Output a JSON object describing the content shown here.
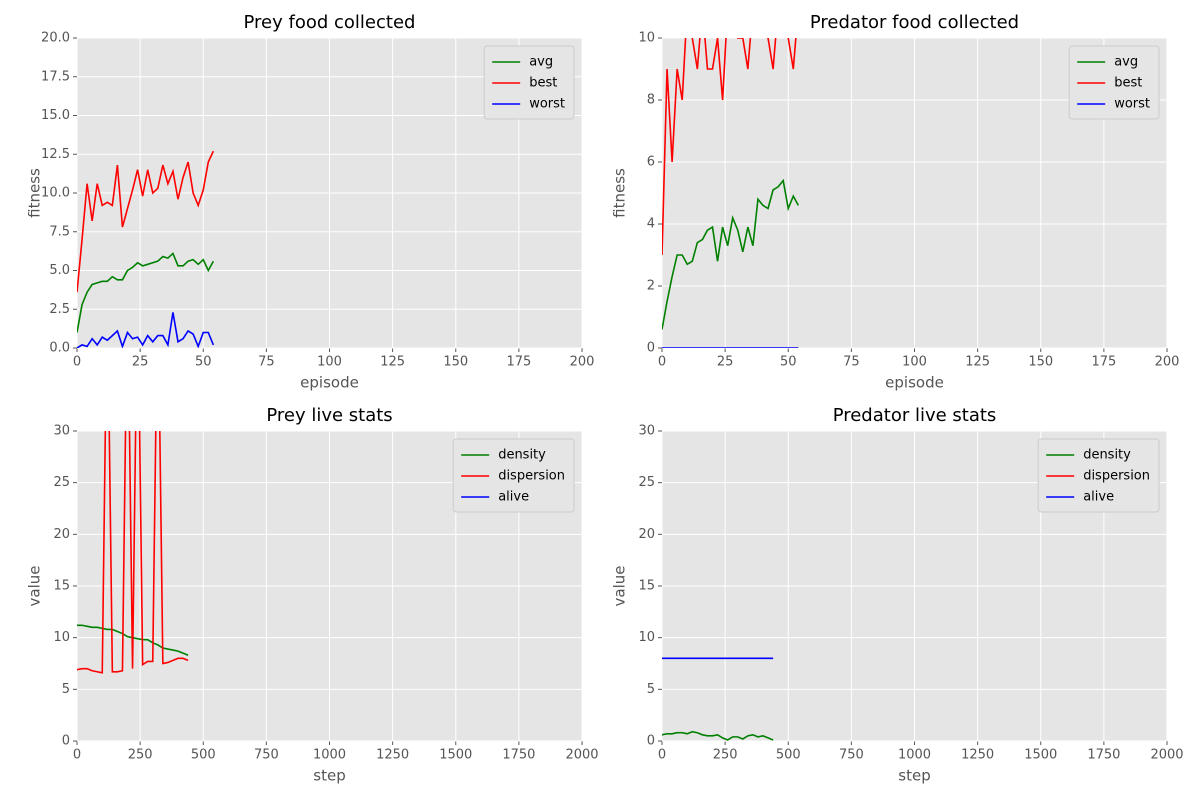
{
  "chart_data": [
    {
      "type": "line",
      "title": "Prey food collected",
      "xlabel": "episode",
      "ylabel": "fitness",
      "x": [
        0,
        2,
        4,
        6,
        8,
        10,
        12,
        14,
        16,
        18,
        20,
        22,
        24,
        26,
        28,
        30,
        32,
        34,
        36,
        38,
        40,
        42,
        44,
        46,
        48,
        50,
        52,
        54
      ],
      "series": [
        {
          "name": "avg",
          "color": "#008000",
          "values": [
            1.0,
            2.8,
            3.6,
            4.1,
            4.2,
            4.3,
            4.3,
            4.6,
            4.4,
            4.4,
            5.0,
            5.2,
            5.5,
            5.3,
            5.4,
            5.5,
            5.6,
            5.9,
            5.8,
            6.1,
            5.3,
            5.3,
            5.6,
            5.7,
            5.4,
            5.7,
            5.0,
            5.6
          ]
        },
        {
          "name": "best",
          "color": "#ff0000",
          "values": [
            3.6,
            7.0,
            10.6,
            8.2,
            10.6,
            9.2,
            9.4,
            9.2,
            11.8,
            7.8,
            9.0,
            10.2,
            11.5,
            9.8,
            11.5,
            10.0,
            10.3,
            11.8,
            10.6,
            11.4,
            9.6,
            11.0,
            12.0,
            10.0,
            9.2,
            10.2,
            12.0,
            12.7
          ]
        },
        {
          "name": "worst",
          "color": "#0000ff",
          "values": [
            0,
            0.2,
            0.1,
            0.6,
            0.2,
            0.7,
            0.5,
            0.8,
            1.1,
            0.1,
            1.0,
            0.6,
            0.7,
            0.2,
            0.8,
            0.4,
            0.8,
            0.8,
            0.2,
            2.3,
            0.4,
            0.6,
            1.1,
            0.9,
            0.1,
            1.0,
            1.0,
            0.2
          ]
        }
      ],
      "xlim": [
        0,
        200
      ],
      "xticks": [
        0,
        25,
        50,
        75,
        100,
        125,
        150,
        175,
        200
      ],
      "ylim": [
        0,
        20
      ],
      "yticks": [
        {
          "value": 0,
          "label": "0.0"
        },
        2.5,
        {
          "value": 5,
          "label": "5.0"
        },
        7.5,
        {
          "value": 10,
          "label": "10.0"
        },
        12.5,
        {
          "value": 15,
          "label": "15.0"
        },
        17.5,
        {
          "value": 20,
          "label": "20.0"
        }
      ],
      "grid": true,
      "legend": "upper right"
    },
    {
      "type": "line",
      "title": "Predator food collected",
      "xlabel": "episode",
      "ylabel": "fitness",
      "x": [
        0,
        2,
        4,
        6,
        8,
        10,
        12,
        14,
        16,
        18,
        20,
        22,
        24,
        26,
        28,
        30,
        32,
        34,
        36,
        38,
        40,
        42,
        44,
        46,
        48,
        50,
        52,
        54
      ],
      "series": [
        {
          "name": "avg",
          "color": "#008000",
          "values": [
            0.6,
            1.5,
            2.3,
            3.0,
            3.0,
            2.7,
            2.8,
            3.4,
            3.5,
            3.8,
            3.9,
            2.8,
            3.9,
            3.3,
            4.2,
            3.8,
            3.1,
            3.9,
            3.3,
            4.8,
            4.6,
            4.5,
            5.1,
            5.2,
            5.4,
            4.5,
            4.9,
            4.6
          ]
        },
        {
          "name": "best",
          "color": "#ff0000",
          "values": [
            3.0,
            9.0,
            6.0,
            9.0,
            8.0,
            11,
            10,
            9,
            11,
            9,
            9,
            10,
            8,
            11,
            11,
            10,
            10,
            9,
            11,
            11,
            11,
            10,
            9,
            11,
            11,
            10,
            9,
            11
          ]
        },
        {
          "name": "worst",
          "color": "#0000ff",
          "values": [
            0,
            0,
            0,
            0,
            0,
            0,
            0,
            0,
            0,
            0,
            0,
            0,
            0,
            0,
            0,
            0,
            0,
            0,
            0,
            0,
            0,
            0,
            0,
            0,
            0,
            0,
            0,
            0
          ]
        }
      ],
      "xlim": [
        0,
        200
      ],
      "xticks": [
        0,
        25,
        50,
        75,
        100,
        125,
        150,
        175,
        200
      ],
      "ylim": [
        0,
        10
      ],
      "yticks": [
        0,
        2,
        4,
        6,
        8,
        10
      ],
      "grid": true,
      "legend": "upper right"
    },
    {
      "type": "line",
      "title": "Prey live stats",
      "xlabel": "step",
      "ylabel": "value",
      "x": [
        0,
        20,
        40,
        60,
        80,
        100,
        120,
        140,
        160,
        180,
        200,
        220,
        240,
        260,
        280,
        300,
        320,
        340,
        360,
        380,
        400,
        420,
        440
      ],
      "series": [
        {
          "name": "density",
          "color": "#008000",
          "values": [
            11.2,
            11.2,
            11.1,
            11.0,
            11.0,
            10.9,
            10.8,
            10.8,
            10.6,
            10.4,
            10.1,
            10.0,
            9.9,
            9.8,
            9.8,
            9.5,
            9.3,
            9.0,
            8.9,
            8.8,
            8.7,
            8.5,
            8.3
          ]
        },
        {
          "name": "dispersion",
          "color": "#ff0000",
          "values": [
            6.9,
            7.0,
            7.0,
            6.8,
            6.7,
            6.6,
            45,
            6.7,
            6.7,
            6.8,
            45,
            7.0,
            45,
            7.4,
            7.7,
            7.7,
            45,
            7.5,
            7.6,
            7.8,
            8.0,
            8.0,
            7.8
          ]
        },
        {
          "name": "alive",
          "color": "#0000ff",
          "values": [
            null,
            null,
            null,
            null,
            null,
            null,
            null,
            null,
            null,
            null,
            null,
            null,
            null,
            null,
            null,
            null,
            null,
            null,
            null,
            null,
            null,
            null,
            null
          ]
        }
      ],
      "xlim": [
        0,
        2000
      ],
      "xticks": [
        0,
        250,
        500,
        750,
        1000,
        1250,
        1500,
        1750,
        2000
      ],
      "ylim": [
        0,
        30
      ],
      "yticks": [
        0,
        5,
        10,
        15,
        20,
        25,
        30
      ],
      "grid": true,
      "legend": "upper right"
    },
    {
      "type": "line",
      "title": "Predator live stats",
      "xlabel": "step",
      "ylabel": "value",
      "x": [
        0,
        20,
        40,
        60,
        80,
        100,
        120,
        140,
        160,
        180,
        200,
        220,
        240,
        260,
        280,
        300,
        320,
        340,
        360,
        380,
        400,
        420,
        440
      ],
      "series": [
        {
          "name": "density",
          "color": "#008000",
          "values": [
            0.6,
            0.7,
            0.7,
            0.8,
            0.8,
            0.7,
            0.9,
            0.8,
            0.6,
            0.5,
            0.5,
            0.6,
            0.3,
            0.1,
            0.4,
            0.4,
            0.2,
            0.5,
            0.6,
            0.4,
            0.5,
            0.3,
            0.1
          ]
        },
        {
          "name": "dispersion",
          "color": "#ff0000",
          "values": [
            null,
            null,
            null,
            null,
            null,
            null,
            null,
            null,
            null,
            null,
            null,
            null,
            null,
            null,
            null,
            null,
            null,
            null,
            null,
            null,
            null,
            null,
            null
          ]
        },
        {
          "name": "alive",
          "color": "#0000ff",
          "values": [
            8,
            8,
            8,
            8,
            8,
            8,
            8,
            8,
            8,
            8,
            8,
            8,
            8,
            8,
            8,
            8,
            8,
            8,
            8,
            8,
            8,
            8,
            8
          ]
        }
      ],
      "xlim": [
        0,
        2000
      ],
      "xticks": [
        0,
        250,
        500,
        750,
        1000,
        1250,
        1500,
        1750,
        2000
      ],
      "ylim": [
        0,
        30
      ],
      "yticks": [
        0,
        5,
        10,
        15,
        20,
        25,
        30
      ],
      "grid": true,
      "legend": "upper right"
    }
  ]
}
